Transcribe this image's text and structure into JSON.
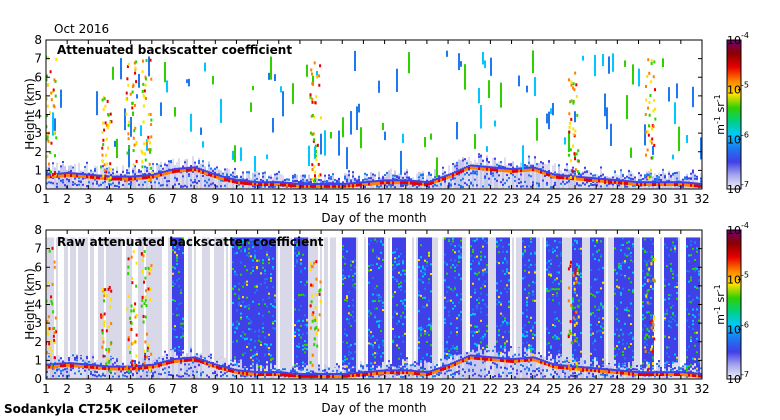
{
  "header": {
    "date_label": "Oct 2016"
  },
  "footer": {
    "site_label": "Sodankyla CT25K ceilometer"
  },
  "colorbar": {
    "tick_labels": [
      "10",
      "10",
      "10",
      "10"
    ],
    "tick_exponents": [
      "-4",
      "-5",
      "-6",
      "-7"
    ],
    "unit_parts": [
      "m",
      "-1",
      " sr",
      "-1"
    ],
    "log_range": [
      -7,
      -4
    ],
    "colors": [
      "#f0f0f8",
      "#a8a8ee",
      "#4040e8",
      "#1e78f0",
      "#00c8ff",
      "#00d080",
      "#30d000",
      "#ffe000",
      "#ff8000",
      "#e80000",
      "#8c0000",
      "#700070"
    ]
  },
  "chart_data": [
    {
      "type": "heatmap",
      "title": "Attenuated backscatter coefficient",
      "xlabel": "Day of the month",
      "ylabel": "Height (km)",
      "xlim": [
        1,
        32
      ],
      "ylim": [
        0,
        8
      ],
      "x_ticks": [
        1,
        2,
        3,
        4,
        5,
        6,
        7,
        8,
        9,
        10,
        11,
        12,
        13,
        14,
        15,
        16,
        17,
        18,
        19,
        20,
        21,
        22,
        23,
        24,
        25,
        26,
        27,
        28,
        29,
        30,
        31,
        32
      ],
      "y_ticks": [
        0,
        1,
        2,
        3,
        4,
        5,
        6,
        7,
        8
      ],
      "value": "log10 attenuated backscatter (m-1 sr-1)",
      "cloud_base_km": [
        [
          1,
          0.6
        ],
        [
          2,
          0.7
        ],
        [
          3,
          0.6
        ],
        [
          4,
          0.5
        ],
        [
          5,
          0.5
        ],
        [
          6,
          0.6
        ],
        [
          7,
          0.9
        ],
        [
          8,
          1.0
        ],
        [
          9,
          0.6
        ],
        [
          10,
          0.3
        ],
        [
          11,
          0.2
        ],
        [
          12,
          0.2
        ],
        [
          13,
          0.1
        ],
        [
          14,
          0.1
        ],
        [
          15,
          0.1
        ],
        [
          16,
          0.2
        ],
        [
          17,
          0.3
        ],
        [
          18,
          0.3
        ],
        [
          19,
          0.2
        ],
        [
          20,
          0.6
        ],
        [
          21,
          1.1
        ],
        [
          22,
          1.0
        ],
        [
          23,
          0.9
        ],
        [
          24,
          1.0
        ],
        [
          25,
          0.6
        ],
        [
          26,
          0.5
        ],
        [
          27,
          0.4
        ],
        [
          28,
          0.3
        ],
        [
          29,
          0.2
        ],
        [
          30,
          0.2
        ],
        [
          31,
          0.2
        ],
        [
          32,
          0.1
        ]
      ],
      "high_cloud_events": [
        {
          "day": 1.2,
          "top_km": 7.5
        },
        {
          "day": 3.8,
          "top_km": 5.0
        },
        {
          "day": 5.0,
          "top_km": 7.2
        },
        {
          "day": 5.7,
          "top_km": 7.0
        },
        {
          "day": 13.7,
          "top_km": 7.0
        },
        {
          "day": 25.9,
          "top_km": 6.5
        },
        {
          "day": 29.5,
          "top_km": 7.3
        }
      ]
    },
    {
      "type": "heatmap",
      "title": "Raw attenuated backscatter coefficient",
      "xlabel": "Day of the month",
      "ylabel": "Height (km)",
      "xlim": [
        1,
        32
      ],
      "ylim": [
        0,
        8
      ],
      "x_ticks": [
        1,
        2,
        3,
        4,
        5,
        6,
        7,
        8,
        9,
        10,
        11,
        12,
        13,
        14,
        15,
        16,
        17,
        18,
        19,
        20,
        21,
        22,
        23,
        24,
        25,
        26,
        27,
        28,
        29,
        30,
        31,
        32
      ],
      "y_ticks": [
        0,
        1,
        2,
        3,
        4,
        5,
        6,
        7,
        8
      ],
      "value": "log10 raw attenuated backscatter (m-1 sr-1)",
      "noise_bands_days": [
        [
          6.9,
          7.5
        ],
        [
          9.7,
          11.8
        ],
        [
          12.7,
          13.3
        ],
        [
          14.9,
          15.6
        ],
        [
          16.2,
          16.9
        ],
        [
          17.3,
          18.0
        ],
        [
          18.5,
          19.2
        ],
        [
          19.8,
          20.6
        ],
        [
          21.0,
          21.8
        ],
        [
          22.2,
          22.9
        ],
        [
          23.4,
          24.1
        ],
        [
          24.6,
          25.3
        ],
        [
          25.8,
          26.3
        ],
        [
          26.7,
          27.3
        ],
        [
          27.8,
          28.7
        ],
        [
          29.1,
          29.7
        ],
        [
          30.2,
          30.8
        ],
        [
          31.2,
          31.9
        ]
      ]
    }
  ]
}
